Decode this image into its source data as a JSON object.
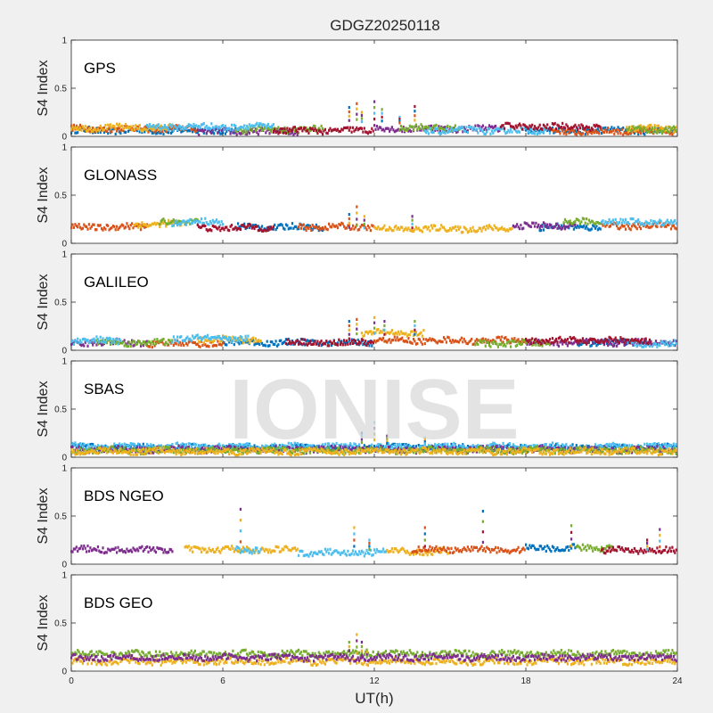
{
  "figure": {
    "title": "GDGZ20250118",
    "xlabel": "UT(h)",
    "ylabel": "S4 Index",
    "watermark": "IONISE",
    "background": "#f0f0f0",
    "axes_background": "#ffffff"
  },
  "chart_data": [
    {
      "type": "scatter",
      "label": "GPS",
      "xlim": [
        0,
        24
      ],
      "ylim": [
        0,
        1
      ],
      "xticks": [
        0,
        6,
        12,
        18,
        24
      ],
      "yticks": [
        0,
        0.5,
        1
      ],
      "grid": false,
      "series": [
        {
          "color": "#0072BD",
          "segments": [
            [
              0,
              6.5,
              0.06
            ],
            [
              18,
              24,
              0.06
            ]
          ]
        },
        {
          "color": "#D95319",
          "segments": [
            [
              0,
              5,
              0.08
            ],
            [
              19,
              24,
              0.05
            ]
          ]
        },
        {
          "color": "#EDB120",
          "segments": [
            [
              0,
              4,
              0.09
            ],
            [
              22,
              24,
              0.08
            ]
          ]
        },
        {
          "color": "#7E2F8E",
          "segments": [
            [
              5,
              9,
              0.05
            ],
            [
              12,
              17,
              0.08
            ]
          ]
        },
        {
          "color": "#77AC30",
          "segments": [
            [
              6.5,
              10,
              0.07
            ],
            [
              13,
              15.5,
              0.09
            ],
            [
              22,
              24,
              0.07
            ]
          ]
        },
        {
          "color": "#4DBEEE",
          "segments": [
            [
              3,
              8,
              0.1
            ],
            [
              14,
              19,
              0.06
            ]
          ]
        },
        {
          "color": "#A2142F",
          "segments": [
            [
              8,
              12,
              0.06
            ],
            [
              17,
              21,
              0.1
            ]
          ]
        }
      ],
      "spikes": [
        {
          "x": 11.0,
          "y": 0.3
        },
        {
          "x": 11.3,
          "y": 0.34
        },
        {
          "x": 11.5,
          "y": 0.25
        },
        {
          "x": 12.0,
          "y": 0.36
        },
        {
          "x": 12.3,
          "y": 0.28
        },
        {
          "x": 13.0,
          "y": 0.2
        },
        {
          "x": 13.6,
          "y": 0.31
        }
      ]
    },
    {
      "type": "scatter",
      "label": "GLONASS",
      "xlim": [
        0,
        24
      ],
      "ylim": [
        0,
        1
      ],
      "xticks": [
        0,
        6,
        12,
        18,
        24
      ],
      "yticks": [
        0,
        0.5,
        1
      ],
      "grid": false,
      "series": [
        {
          "color": "#0072BD",
          "segments": [
            [
              6.5,
              10,
              0.17
            ],
            [
              18.5,
              21,
              0.17
            ]
          ]
        },
        {
          "color": "#D95319",
          "segments": [
            [
              0,
              3,
              0.17
            ],
            [
              9,
              12,
              0.17
            ],
            [
              21,
              24,
              0.18
            ]
          ]
        },
        {
          "color": "#EDB120",
          "segments": [
            [
              12,
              17.5,
              0.15
            ],
            [
              2.5,
              4.5,
              0.2
            ]
          ]
        },
        {
          "color": "#7E2F8E",
          "segments": [
            [
              17.5,
              20,
              0.18
            ]
          ]
        },
        {
          "color": "#77AC30",
          "segments": [
            [
              3.5,
              5,
              0.22
            ],
            [
              19.5,
              21,
              0.22
            ]
          ]
        },
        {
          "color": "#4DBEEE",
          "segments": [
            [
              4,
              6,
              0.22
            ],
            [
              21,
              24,
              0.22
            ]
          ]
        },
        {
          "color": "#A2142F",
          "segments": [
            [
              5,
              8,
              0.16
            ]
          ]
        }
      ],
      "spikes": [
        {
          "x": 11.0,
          "y": 0.3
        },
        {
          "x": 11.3,
          "y": 0.38
        },
        {
          "x": 11.6,
          "y": 0.28
        },
        {
          "x": 13.5,
          "y": 0.28
        }
      ]
    },
    {
      "type": "scatter",
      "label": "GALILEO",
      "xlim": [
        0,
        24
      ],
      "ylim": [
        0,
        1
      ],
      "xticks": [
        0,
        6,
        12,
        18,
        24
      ],
      "yticks": [
        0,
        0.5,
        1
      ],
      "grid": false,
      "series": [
        {
          "color": "#0072BD",
          "segments": [
            [
              6,
              12,
              0.08
            ],
            [
              20,
              23,
              0.08
            ]
          ]
        },
        {
          "color": "#D95319",
          "segments": [
            [
              12,
              18,
              0.1
            ],
            [
              3,
              6,
              0.07
            ]
          ]
        },
        {
          "color": "#EDB120",
          "segments": [
            [
              11.5,
              14,
              0.18
            ],
            [
              5,
              7.5,
              0.11
            ]
          ]
        },
        {
          "color": "#7E2F8E",
          "segments": [
            [
              0,
              3,
              0.08
            ],
            [
              18,
              24,
              0.08
            ]
          ]
        },
        {
          "color": "#77AC30",
          "segments": [
            [
              1,
              4,
              0.08
            ],
            [
              16,
              19,
              0.07
            ]
          ]
        },
        {
          "color": "#4DBEEE",
          "segments": [
            [
              0,
              2,
              0.1
            ],
            [
              4,
              7,
              0.12
            ],
            [
              22,
              24,
              0.07
            ]
          ]
        },
        {
          "color": "#A2142F",
          "segments": [
            [
              8.5,
              12,
              0.08
            ],
            [
              18,
              23,
              0.1
            ]
          ]
        }
      ],
      "spikes": [
        {
          "x": 11.0,
          "y": 0.3
        },
        {
          "x": 11.3,
          "y": 0.32
        },
        {
          "x": 12.0,
          "y": 0.34
        },
        {
          "x": 12.4,
          "y": 0.3
        },
        {
          "x": 13.6,
          "y": 0.3
        }
      ]
    },
    {
      "type": "scatter",
      "label": "SBAS",
      "xlim": [
        0,
        24
      ],
      "ylim": [
        0,
        1
      ],
      "xticks": [
        0,
        6,
        12,
        18,
        24
      ],
      "yticks": [
        0,
        0.5,
        1
      ],
      "grid": false,
      "series": [
        {
          "color": "#0072BD",
          "segments": [
            [
              0,
              24,
              0.1
            ]
          ]
        },
        {
          "color": "#4DBEEE",
          "segments": [
            [
              0,
              24,
              0.11
            ]
          ]
        },
        {
          "color": "#7E2F8E",
          "segments": [
            [
              0,
              24,
              0.08
            ]
          ]
        },
        {
          "color": "#77AC30",
          "segments": [
            [
              0,
              24,
              0.07
            ]
          ]
        },
        {
          "color": "#EDB120",
          "segments": [
            [
              0,
              24,
              0.06
            ]
          ]
        }
      ],
      "spikes": [
        {
          "x": 11.5,
          "y": 0.25
        },
        {
          "x": 12.0,
          "y": 0.36
        },
        {
          "x": 12.5,
          "y": 0.22
        },
        {
          "x": 14.0,
          "y": 0.2
        }
      ]
    },
    {
      "type": "scatter",
      "label": "BDS NGEO",
      "xlim": [
        0,
        24
      ],
      "ylim": [
        0,
        1
      ],
      "xticks": [
        0,
        6,
        12,
        18,
        24
      ],
      "yticks": [
        0,
        0.5,
        1
      ],
      "grid": false,
      "series": [
        {
          "color": "#7E2F8E",
          "segments": [
            [
              0,
              4,
              0.15
            ]
          ]
        },
        {
          "color": "#EDB120",
          "segments": [
            [
              4.5,
              9,
              0.15
            ],
            [
              12.5,
              15,
              0.13
            ]
          ]
        },
        {
          "color": "#4DBEEE",
          "segments": [
            [
              9,
              12.5,
              0.12
            ],
            [
              6.5,
              7.5,
              0.15
            ]
          ]
        },
        {
          "color": "#D95319",
          "segments": [
            [
              13.5,
              18,
              0.15
            ]
          ]
        },
        {
          "color": "#0072BD",
          "segments": [
            [
              18,
              20,
              0.17
            ]
          ]
        },
        {
          "color": "#77AC30",
          "segments": [
            [
              20,
              21.5,
              0.17
            ]
          ]
        },
        {
          "color": "#A2142F",
          "segments": [
            [
              21,
              24,
              0.14
            ]
          ]
        }
      ],
      "spikes": [
        {
          "x": 6.7,
          "y": 0.57
        },
        {
          "x": 11.2,
          "y": 0.38
        },
        {
          "x": 11.8,
          "y": 0.25
        },
        {
          "x": 14.0,
          "y": 0.38
        },
        {
          "x": 16.3,
          "y": 0.55
        },
        {
          "x": 19.8,
          "y": 0.4
        },
        {
          "x": 22.8,
          "y": 0.25
        },
        {
          "x": 23.3,
          "y": 0.36
        }
      ]
    },
    {
      "type": "scatter",
      "label": "BDS GEO",
      "xlim": [
        0,
        24
      ],
      "ylim": [
        0,
        1
      ],
      "xticks": [
        0,
        6,
        12,
        18,
        24
      ],
      "yticks": [
        0,
        0.5,
        1
      ],
      "grid": false,
      "series": [
        {
          "color": "#77AC30",
          "segments": [
            [
              0,
              24,
              0.18
            ]
          ]
        },
        {
          "color": "#EDB120",
          "segments": [
            [
              0,
              24,
              0.1
            ]
          ]
        },
        {
          "color": "#7E2F8E",
          "segments": [
            [
              0,
              24,
              0.14
            ]
          ]
        }
      ],
      "spikes": [
        {
          "x": 11.0,
          "y": 0.3
        },
        {
          "x": 11.3,
          "y": 0.38
        },
        {
          "x": 11.5,
          "y": 0.3
        },
        {
          "x": 11.7,
          "y": 0.22
        }
      ]
    }
  ]
}
